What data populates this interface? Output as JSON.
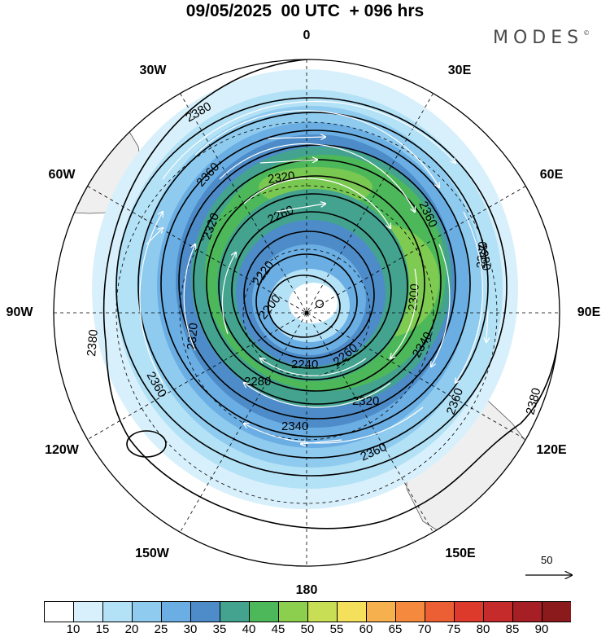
{
  "title": "09/05/2025  00 UTC  + 096 hrs",
  "logo": "MODES",
  "logo_mark": "©",
  "longitude_labels": {
    "lon_0": "0",
    "lon_30e": "30E",
    "lon_60e": "60E",
    "lon_90e": "90E",
    "lon_120e": "120E",
    "lon_150e": "150E",
    "lon_180": "180",
    "lon_150w": "150W",
    "lon_120w": "120W",
    "lon_90w": "90W",
    "lon_60w": "60W",
    "lon_30w": "30W"
  },
  "contour_labels": [
    "2380",
    "2360",
    "2320",
    "2260",
    "2220",
    "2200",
    "2240",
    "2260",
    "2280",
    "2300",
    "2320",
    "2340",
    "2360",
    "2380",
    "2360",
    "2380",
    "2340",
    "2360",
    "2380",
    "2380",
    "2360",
    "2320",
    "2320"
  ],
  "colorbar": {
    "ticks": [
      "10",
      "15",
      "20",
      "25",
      "30",
      "35",
      "40",
      "45",
      "50",
      "55",
      "60",
      "65",
      "70",
      "75",
      "80",
      "85",
      "90"
    ],
    "colors": [
      "#ffffff",
      "#d8f0fb",
      "#b3e1f6",
      "#8fcbef",
      "#6aaee3",
      "#4d8cc8",
      "#43a38f",
      "#4db85a",
      "#8ccf4f",
      "#c8de55",
      "#f5e05b",
      "#f6b04d",
      "#f58a3f",
      "#ec5f35",
      "#de3a2c",
      "#c52b2a",
      "#a51f24",
      "#8a1a1c"
    ]
  },
  "reference_vector": {
    "label": "50"
  }
}
